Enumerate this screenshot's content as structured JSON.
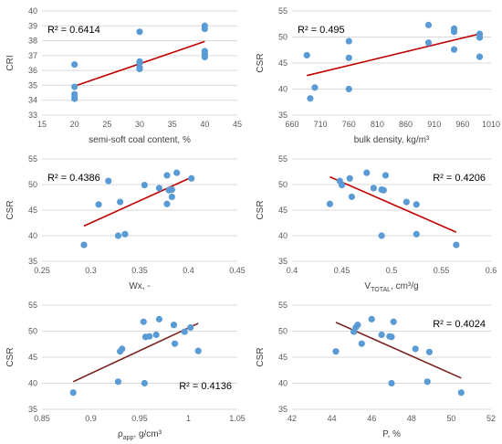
{
  "chart_data": [
    {
      "type": "scatter",
      "xlabel": "semi-soft coal content, %",
      "ylabel": "CRI",
      "xlim": [
        15,
        45
      ],
      "ylim": [
        33,
        40
      ],
      "xticks": [
        15,
        20,
        25,
        30,
        35,
        40,
        45
      ],
      "xtick_labels": [
        "15",
        "20",
        "25",
        "30",
        "35",
        "40",
        "45"
      ],
      "yticks": [
        33,
        34,
        35,
        36,
        37,
        38,
        39,
        40
      ],
      "ytick_labels": [
        "33",
        "34",
        "35",
        "36",
        "37",
        "38",
        "39",
        "40"
      ],
      "r2_text": "R² = 0.6414",
      "r2_position": "top-left",
      "grid": "horizontal",
      "points": [
        [
          20,
          36.4
        ],
        [
          20,
          34.9
        ],
        [
          20,
          34.4
        ],
        [
          20,
          34.2
        ],
        [
          20,
          34.1
        ],
        [
          30,
          38.6
        ],
        [
          30,
          36.6
        ],
        [
          30,
          36.5
        ],
        [
          30,
          36.2
        ],
        [
          30,
          36.1
        ],
        [
          40,
          39.0
        ],
        [
          40,
          38.8
        ],
        [
          40,
          37.3
        ],
        [
          40,
          37.1
        ],
        [
          40,
          36.9
        ]
      ],
      "trendline": [
        [
          20,
          34.95
        ],
        [
          40,
          37.95
        ]
      ],
      "marker_color": "#5b9bd5",
      "trend_color": "#c00000"
    },
    {
      "type": "scatter",
      "xlabel": "bulk density, kg/m³",
      "ylabel": "CSR",
      "xlim": [
        660,
        1010
      ],
      "ylim": [
        35,
        55
      ],
      "xticks": [
        660,
        710,
        760,
        810,
        860,
        910,
        960,
        1010
      ],
      "xtick_labels": [
        "660",
        "710",
        "760",
        "810",
        "860",
        "910",
        "960",
        "1010"
      ],
      "yticks": [
        35,
        40,
        45,
        50,
        55
      ],
      "ytick_labels": [
        "35",
        "40",
        "45",
        "50",
        "55"
      ],
      "r2_text": "R² = 0.495",
      "r2_position": "top-left",
      "grid": "horizontal",
      "points": [
        [
          686,
          46.5
        ],
        [
          692,
          38.2
        ],
        [
          700,
          40.3
        ],
        [
          760,
          40.0
        ],
        [
          760,
          46.0
        ],
        [
          760,
          49.2
        ],
        [
          900,
          52.3
        ],
        [
          900,
          48.9
        ],
        [
          945,
          51.6
        ],
        [
          945,
          51.0
        ],
        [
          945,
          47.6
        ],
        [
          990,
          50.6
        ],
        [
          990,
          49.9
        ],
        [
          990,
          46.2
        ]
      ],
      "trendline": [
        [
          686,
          42.6
        ],
        [
          990,
          50.6
        ]
      ],
      "marker_color": "#5b9bd5",
      "trend_color": "#c00000"
    },
    {
      "type": "scatter",
      "xlabel": "Wx, -",
      "ylabel": "CSR",
      "xlim": [
        0.25,
        0.45
      ],
      "ylim": [
        35,
        55
      ],
      "xticks": [
        0.25,
        0.3,
        0.35,
        0.4,
        0.45
      ],
      "xtick_labels": [
        "0.25",
        "0.3",
        "0.35",
        "0.4",
        "0.45"
      ],
      "yticks": [
        35,
        40,
        45,
        50,
        55
      ],
      "ytick_labels": [
        "35",
        "40",
        "45",
        "50",
        "55"
      ],
      "r2_text": "R² = 0.4386",
      "r2_position": "top-left",
      "grid": "horizontal",
      "points": [
        [
          0.293,
          38.2
        ],
        [
          0.308,
          46.1
        ],
        [
          0.318,
          50.7
        ],
        [
          0.328,
          40.0
        ],
        [
          0.33,
          46.6
        ],
        [
          0.335,
          40.3
        ],
        [
          0.355,
          49.9
        ],
        [
          0.37,
          49.3
        ],
        [
          0.378,
          51.8
        ],
        [
          0.378,
          46.2
        ],
        [
          0.38,
          48.9
        ],
        [
          0.383,
          47.6
        ],
        [
          0.383,
          49.0
        ],
        [
          0.388,
          52.3
        ],
        [
          0.403,
          51.2
        ]
      ],
      "trendline": [
        [
          0.293,
          41.9
        ],
        [
          0.403,
          51.4
        ]
      ],
      "marker_color": "#5b9bd5",
      "trend_color": "#c00000"
    },
    {
      "type": "scatter",
      "xlabel": "V",
      "xlabel_sub": "TOTAL",
      "xlabel_rest": ", cm³/g",
      "ylabel": "CSR",
      "xlim": [
        0.4,
        0.6
      ],
      "ylim": [
        35,
        55
      ],
      "xticks": [
        0.4,
        0.45,
        0.5,
        0.55,
        0.6
      ],
      "xtick_labels": [
        "0.4",
        "0.45",
        "0.5",
        "0.55",
        "0.6"
      ],
      "yticks": [
        35,
        40,
        45,
        50,
        55
      ],
      "ytick_labels": [
        "35",
        "40",
        "45",
        "50",
        "55"
      ],
      "r2_text": "R² = 0.4206",
      "r2_position": "top-right",
      "grid": "horizontal",
      "points": [
        [
          0.438,
          46.2
        ],
        [
          0.448,
          50.7
        ],
        [
          0.45,
          49.9
        ],
        [
          0.458,
          51.2
        ],
        [
          0.46,
          47.6
        ],
        [
          0.475,
          52.3
        ],
        [
          0.482,
          49.3
        ],
        [
          0.49,
          49.0
        ],
        [
          0.49,
          40.0
        ],
        [
          0.492,
          48.9
        ],
        [
          0.494,
          51.8
        ],
        [
          0.515,
          46.6
        ],
        [
          0.525,
          46.1
        ],
        [
          0.525,
          40.3
        ],
        [
          0.565,
          38.2
        ]
      ],
      "trendline": [
        [
          0.438,
          51.5
        ],
        [
          0.565,
          40.7
        ]
      ],
      "marker_color": "#5b9bd5",
      "trend_color": "#c00000"
    },
    {
      "type": "scatter",
      "xlabel": "ρ",
      "xlabel_sub": "app",
      "xlabel_rest": ", g/cm³",
      "ylabel": "CSR",
      "xlim": [
        0.85,
        1.05
      ],
      "ylim": [
        35,
        55
      ],
      "xticks": [
        0.85,
        0.9,
        0.95,
        1,
        1.05
      ],
      "xtick_labels": [
        "0.85",
        "0.9",
        "0.95",
        "1",
        "1.05"
      ],
      "yticks": [
        35,
        40,
        45,
        50,
        55
      ],
      "ytick_labels": [
        "35",
        "40",
        "45",
        "50",
        "55"
      ],
      "r2_text": "R² = 0.4136",
      "r2_position": "bottom-right",
      "grid": "horizontal",
      "points": [
        [
          0.882,
          38.2
        ],
        [
          0.928,
          40.3
        ],
        [
          0.93,
          46.1
        ],
        [
          0.932,
          46.6
        ],
        [
          0.954,
          51.8
        ],
        [
          0.955,
          40.0
        ],
        [
          0.956,
          48.9
        ],
        [
          0.96,
          49.0
        ],
        [
          0.967,
          49.3
        ],
        [
          0.97,
          52.3
        ],
        [
          0.985,
          51.2
        ],
        [
          0.986,
          47.6
        ],
        [
          0.996,
          49.9
        ],
        [
          1.002,
          50.7
        ],
        [
          1.01,
          46.2
        ]
      ],
      "trendline": [
        [
          0.882,
          40.3
        ],
        [
          1.01,
          51.5
        ]
      ],
      "marker_color": "#5b9bd5",
      "trend_color": "#7b1f1f"
    },
    {
      "type": "scatter",
      "xlabel": "P, %",
      "ylabel": "CSR",
      "xlim": [
        42,
        52
      ],
      "ylim": [
        35,
        55
      ],
      "xticks": [
        42,
        44,
        46,
        48,
        50,
        52
      ],
      "xtick_labels": [
        "42",
        "44",
        "46",
        "48",
        "50",
        "52"
      ],
      "yticks": [
        35,
        40,
        45,
        50,
        55
      ],
      "ytick_labels": [
        "35",
        "40",
        "45",
        "50",
        "55"
      ],
      "r2_text": "R² = 0.4024",
      "r2_position": "top-right",
      "grid": "horizontal",
      "points": [
        [
          44.2,
          46.1
        ],
        [
          45.1,
          49.9
        ],
        [
          45.2,
          50.7
        ],
        [
          45.3,
          51.2
        ],
        [
          45.5,
          47.6
        ],
        [
          46.0,
          52.3
        ],
        [
          46.5,
          49.3
        ],
        [
          46.9,
          49.0
        ],
        [
          47.0,
          48.9
        ],
        [
          47.0,
          40.0
        ],
        [
          47.1,
          51.8
        ],
        [
          48.2,
          46.6
        ],
        [
          48.8,
          40.3
        ],
        [
          48.9,
          46.0
        ],
        [
          50.5,
          38.2
        ]
      ],
      "trendline": [
        [
          44.2,
          51.7
        ],
        [
          50.5,
          41.0
        ]
      ],
      "marker_color": "#5b9bd5",
      "trend_color": "#7b1f1f"
    }
  ]
}
